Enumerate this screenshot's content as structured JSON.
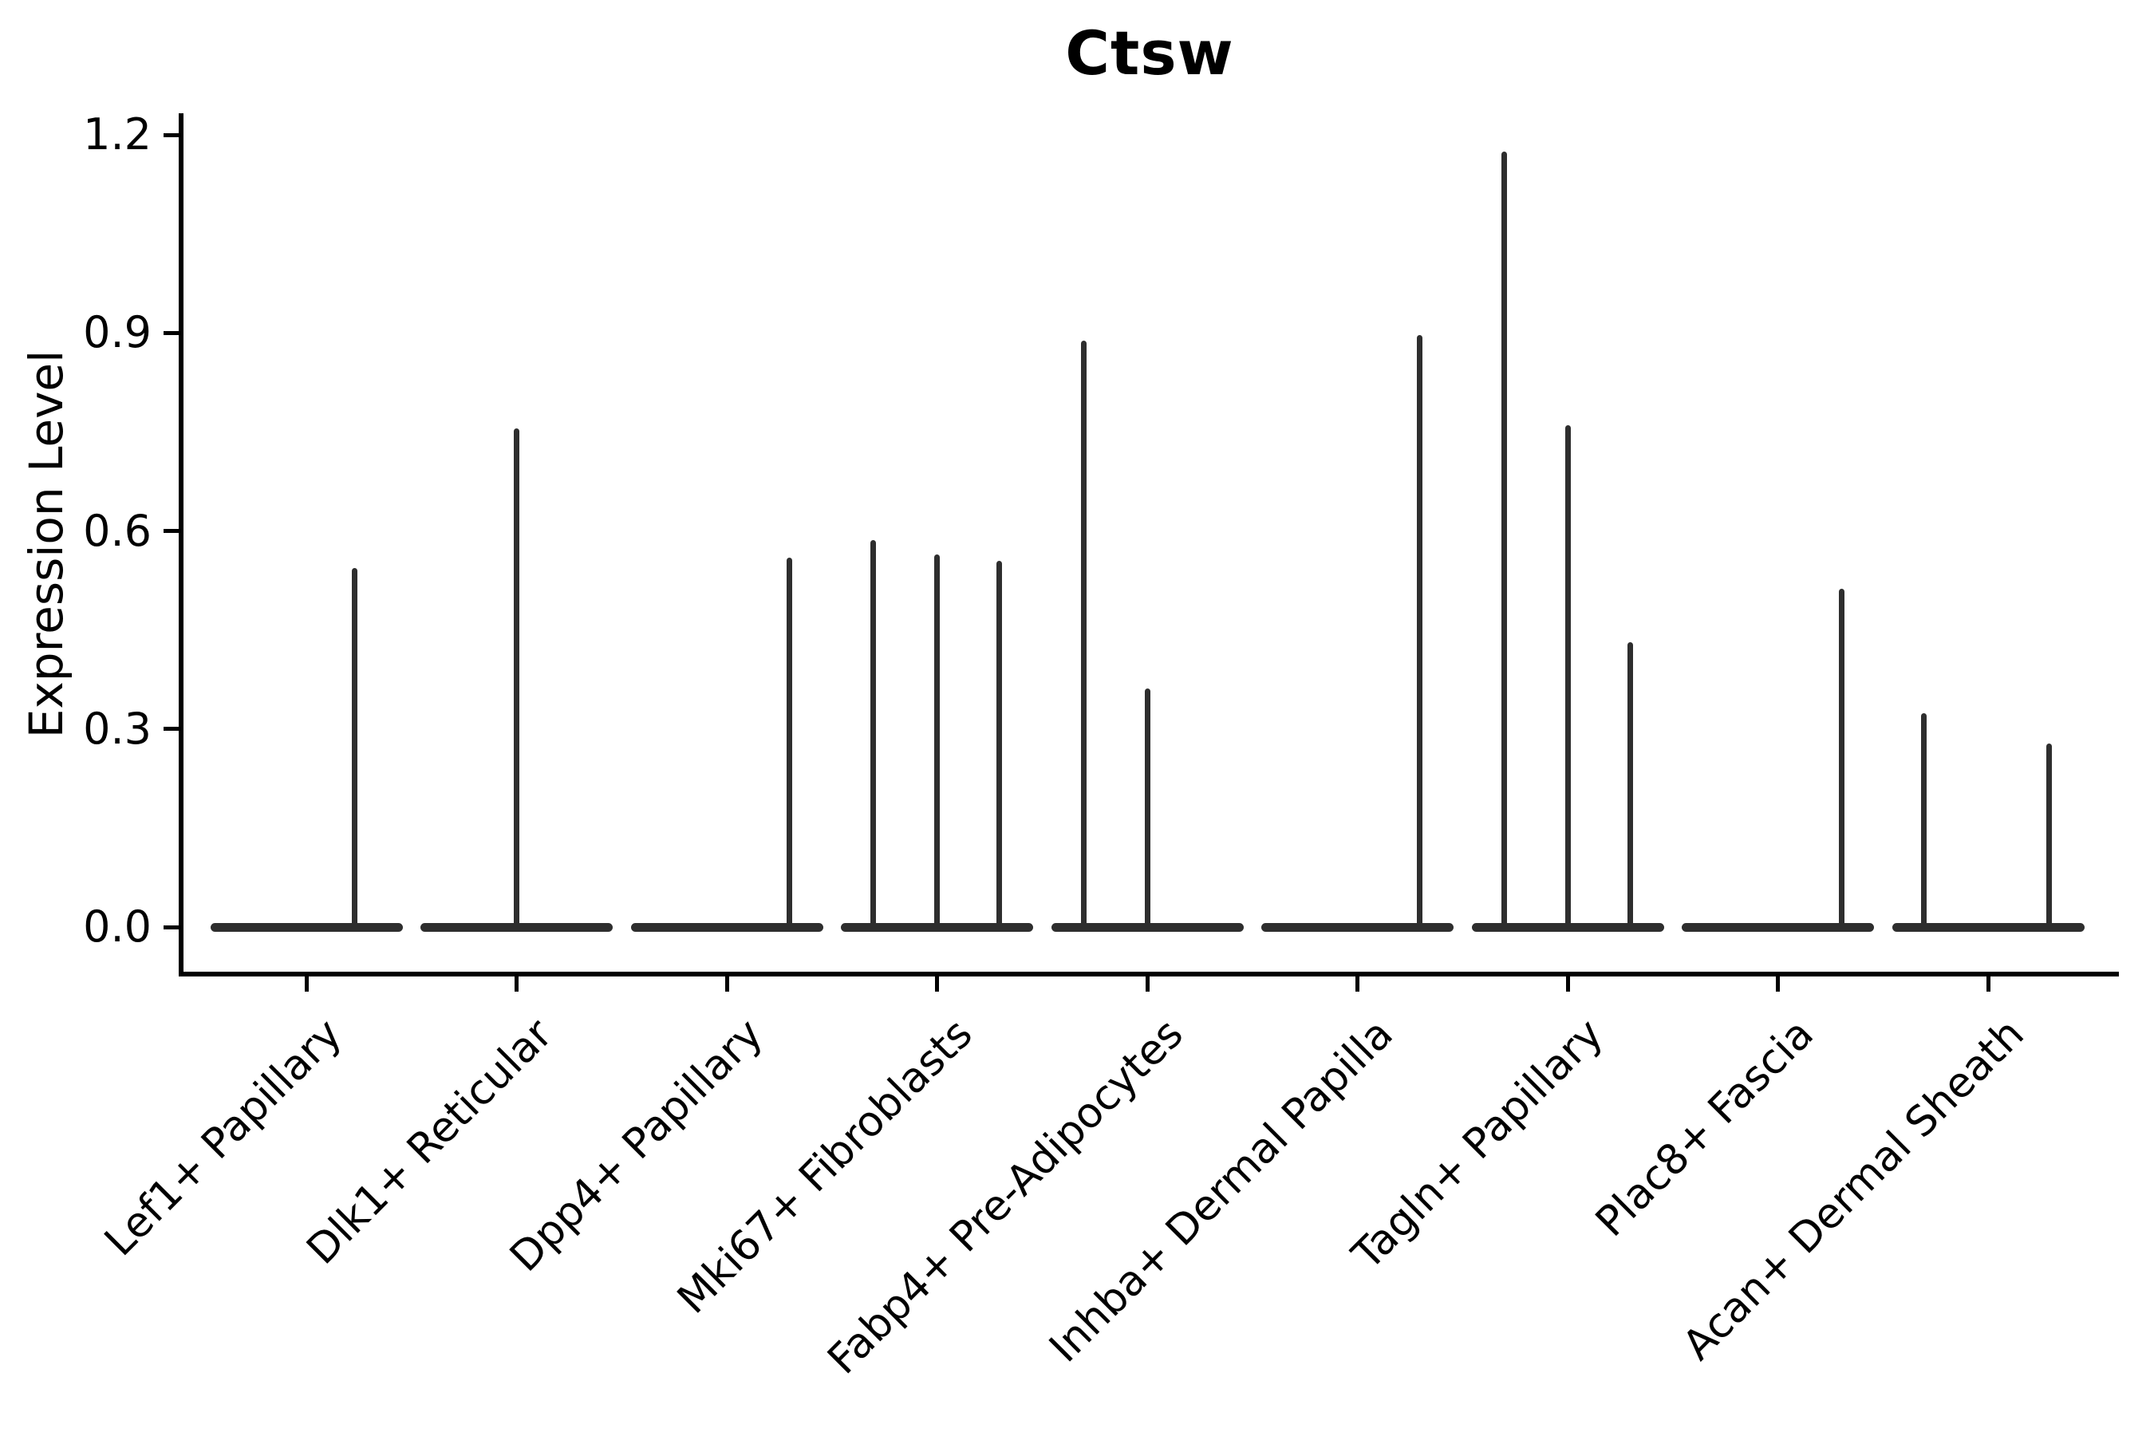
{
  "chart_data": {
    "type": "violin",
    "title": "Ctsw",
    "xlabel": "",
    "ylabel": "Expression Level",
    "ytick_labels": [
      "0.0",
      "0.3",
      "0.6",
      "0.9",
      "1.2"
    ],
    "ytick_values": [
      0.0,
      0.3,
      0.6,
      0.9,
      1.2
    ],
    "ylim": [
      -0.07,
      1.23
    ],
    "grid": "off",
    "legend": "none",
    "description": "Single-gene expression violin plot; each cell-type category shows flat violins at 0 with thin density spikes; spike offsets are pixel offsets from the category tick, values are spike peak expression levels",
    "categories": [
      {
        "label": "Lef1+ Papillary",
        "spikes": [
          {
            "offset": 60,
            "value": 0.544
          }
        ]
      },
      {
        "label": "Dlk1+ Reticular",
        "spikes": [
          {
            "offset": 0,
            "value": 0.756
          }
        ]
      },
      {
        "label": "Dpp4+ Papillary",
        "spikes": [
          {
            "offset": 78,
            "value": 0.56
          }
        ]
      },
      {
        "label": "Mki67+ Fibroblasts",
        "spikes": [
          {
            "offset": -80,
            "value": 0.586
          },
          {
            "offset": 0,
            "value": 0.564
          },
          {
            "offset": 78,
            "value": 0.555
          }
        ]
      },
      {
        "label": "Fabp4+ Pre-Adipocytes",
        "spikes": [
          {
            "offset": -80,
            "value": 0.888
          },
          {
            "offset": 0,
            "value": 0.361
          }
        ]
      },
      {
        "label": "Inhba+ Dermal Papilla",
        "spikes": [
          {
            "offset": 78,
            "value": 0.897
          }
        ]
      },
      {
        "label": "Tagln+ Papillary",
        "spikes": [
          {
            "offset": -80,
            "value": 1.175
          },
          {
            "offset": 0,
            "value": 0.76
          },
          {
            "offset": 78,
            "value": 0.431
          }
        ]
      },
      {
        "label": "Plac8+ Fascia",
        "spikes": [
          {
            "offset": 80,
            "value": 0.513
          }
        ]
      },
      {
        "label": "Acan+ Dermal Sheath",
        "spikes": [
          {
            "offset": -81,
            "value": 0.324
          },
          {
            "offset": 76,
            "value": 0.278
          }
        ]
      }
    ]
  }
}
